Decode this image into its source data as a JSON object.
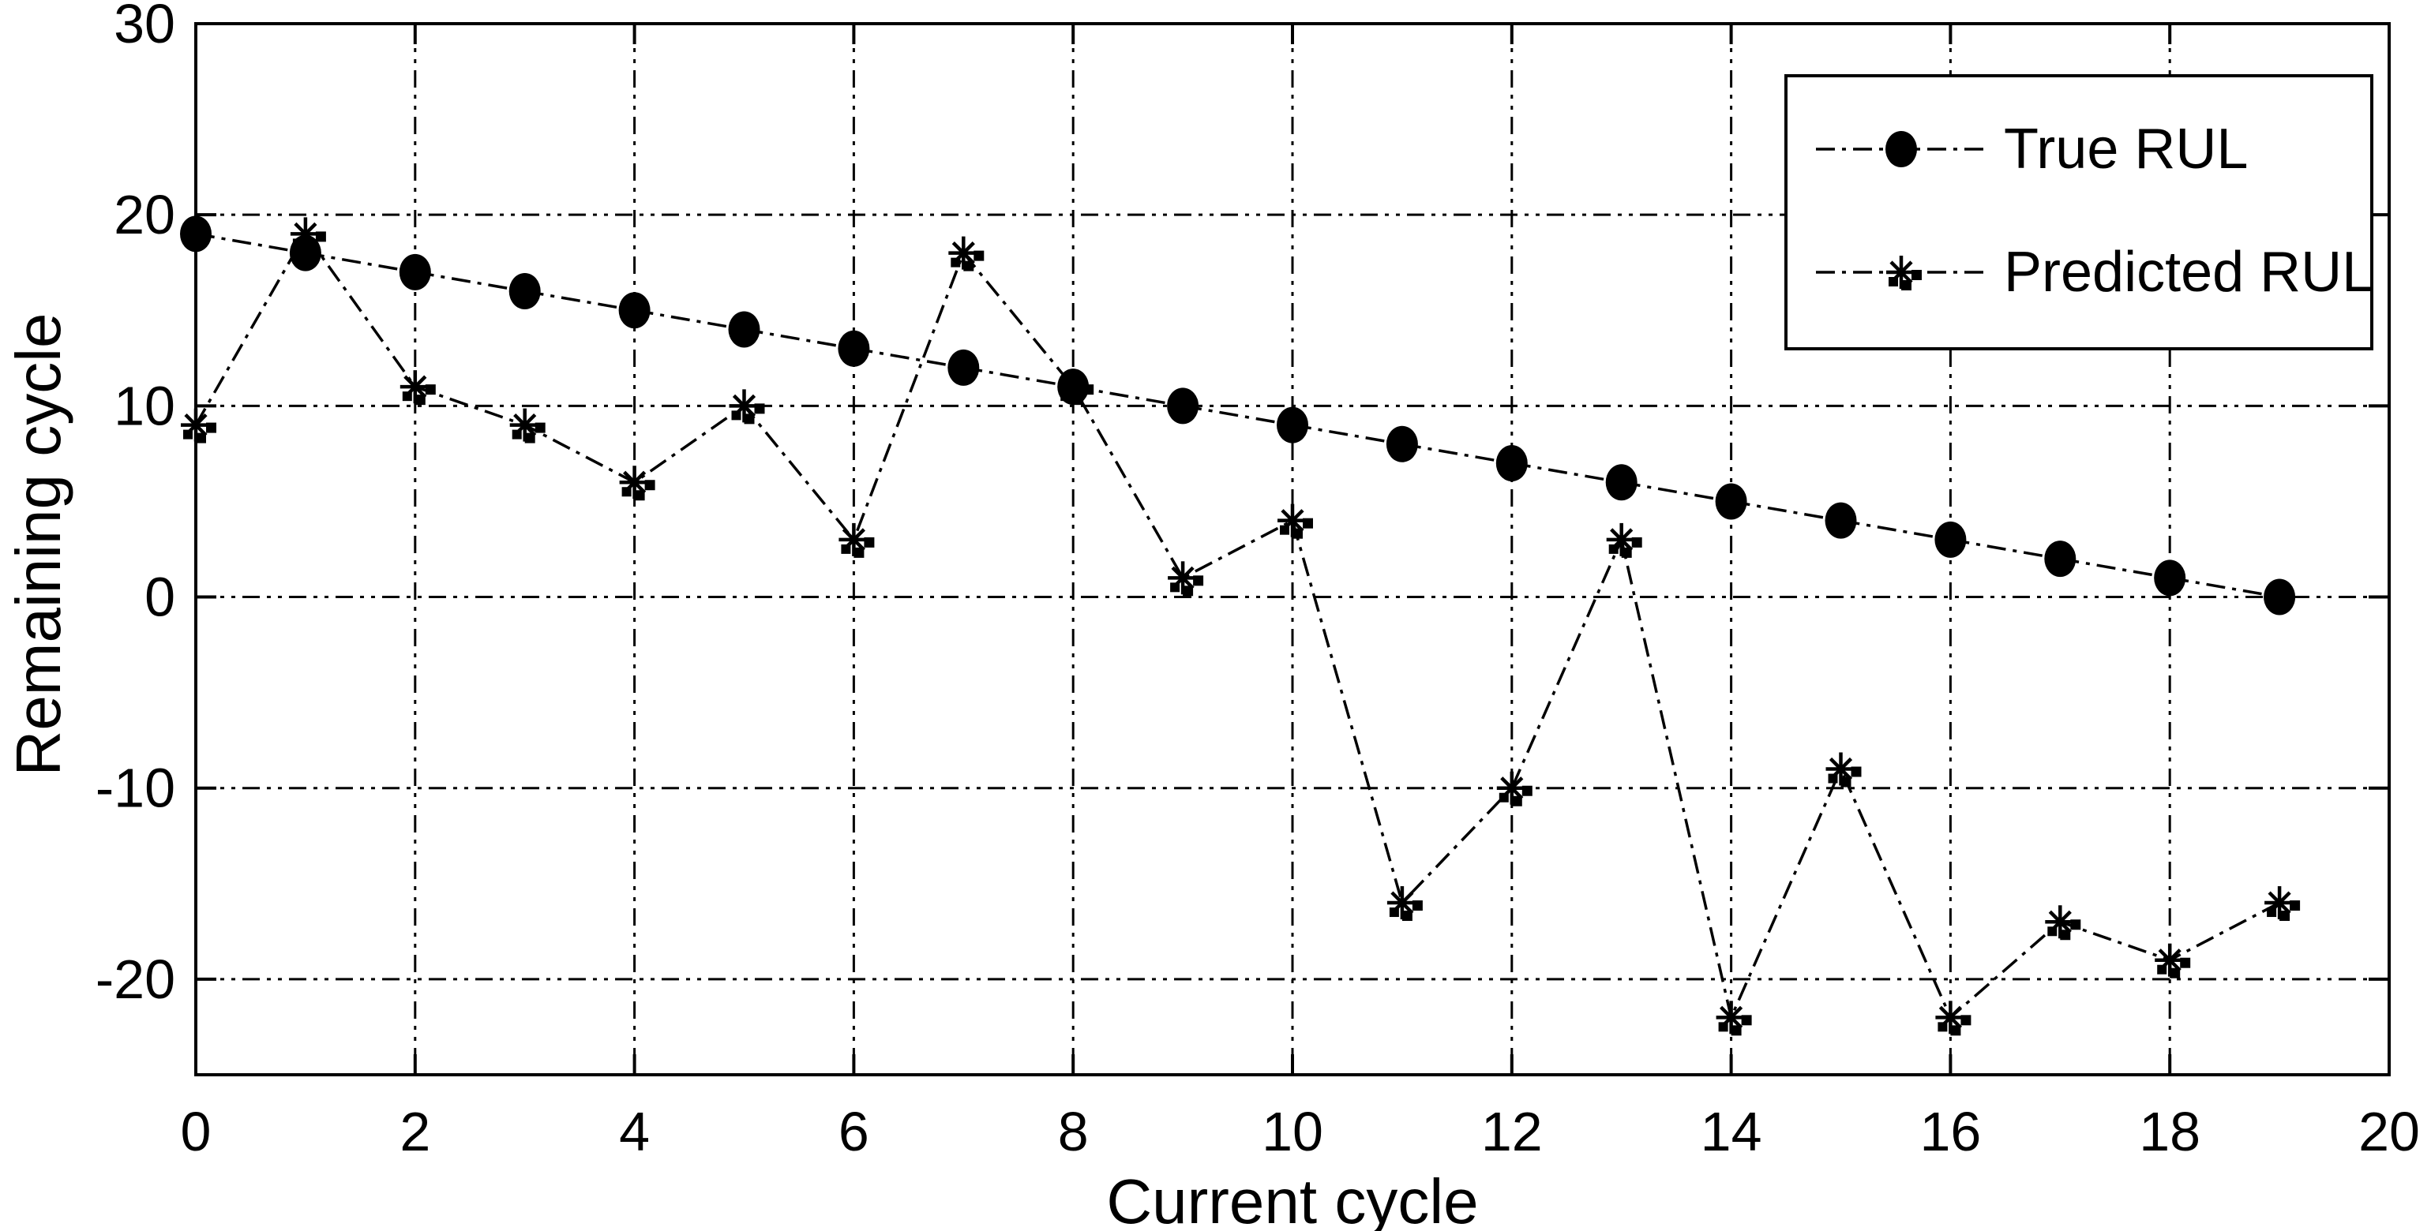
{
  "figure": {
    "background_color": "#ffffff",
    "ink_color": "#000000"
  },
  "chart_data": {
    "type": "line",
    "title": "",
    "xlabel": "Current cycle",
    "ylabel": "Remaining cycle",
    "xlim": [
      0,
      20
    ],
    "ylim": [
      -25,
      30
    ],
    "x_ticks": {
      "values": [
        0,
        2,
        4,
        6,
        8,
        10,
        12,
        14,
        16,
        18,
        20
      ],
      "labels": [
        "0",
        "2",
        "4",
        "6",
        "8",
        "10",
        "12",
        "14",
        "16",
        "18",
        "20"
      ]
    },
    "y_ticks": {
      "values": [
        -20,
        -10,
        0,
        10,
        20,
        30
      ],
      "labels": [
        "-20",
        "-10",
        "0",
        "10",
        "20",
        "30"
      ]
    },
    "grid": {
      "shown": true,
      "style": "dash-dot",
      "color": "#000000"
    },
    "x": [
      0,
      1,
      2,
      3,
      4,
      5,
      6,
      7,
      8,
      9,
      10,
      11,
      12,
      13,
      14,
      15,
      16,
      17,
      18,
      19
    ],
    "series": [
      {
        "name": "True RUL",
        "marker": "filled-circle",
        "line_style": "dash-dot",
        "color": "#000000",
        "values": [
          19,
          18,
          17,
          16,
          15,
          14,
          13,
          12,
          11,
          10,
          9,
          8,
          7,
          6,
          5,
          4,
          3,
          2,
          1,
          0
        ]
      },
      {
        "name": "Predicted RUL",
        "marker": "asterisk-with-square-fragments",
        "line_style": "dash-dot",
        "color": "#000000",
        "values": [
          9,
          19,
          11,
          9,
          6,
          10,
          3,
          18,
          11,
          1,
          4,
          -16,
          -10,
          3,
          -22,
          -9,
          -22,
          -17,
          -19,
          -16
        ]
      }
    ],
    "legend": {
      "position": "top-right",
      "entries": [
        "True RUL",
        "Predicted RUL"
      ]
    }
  }
}
